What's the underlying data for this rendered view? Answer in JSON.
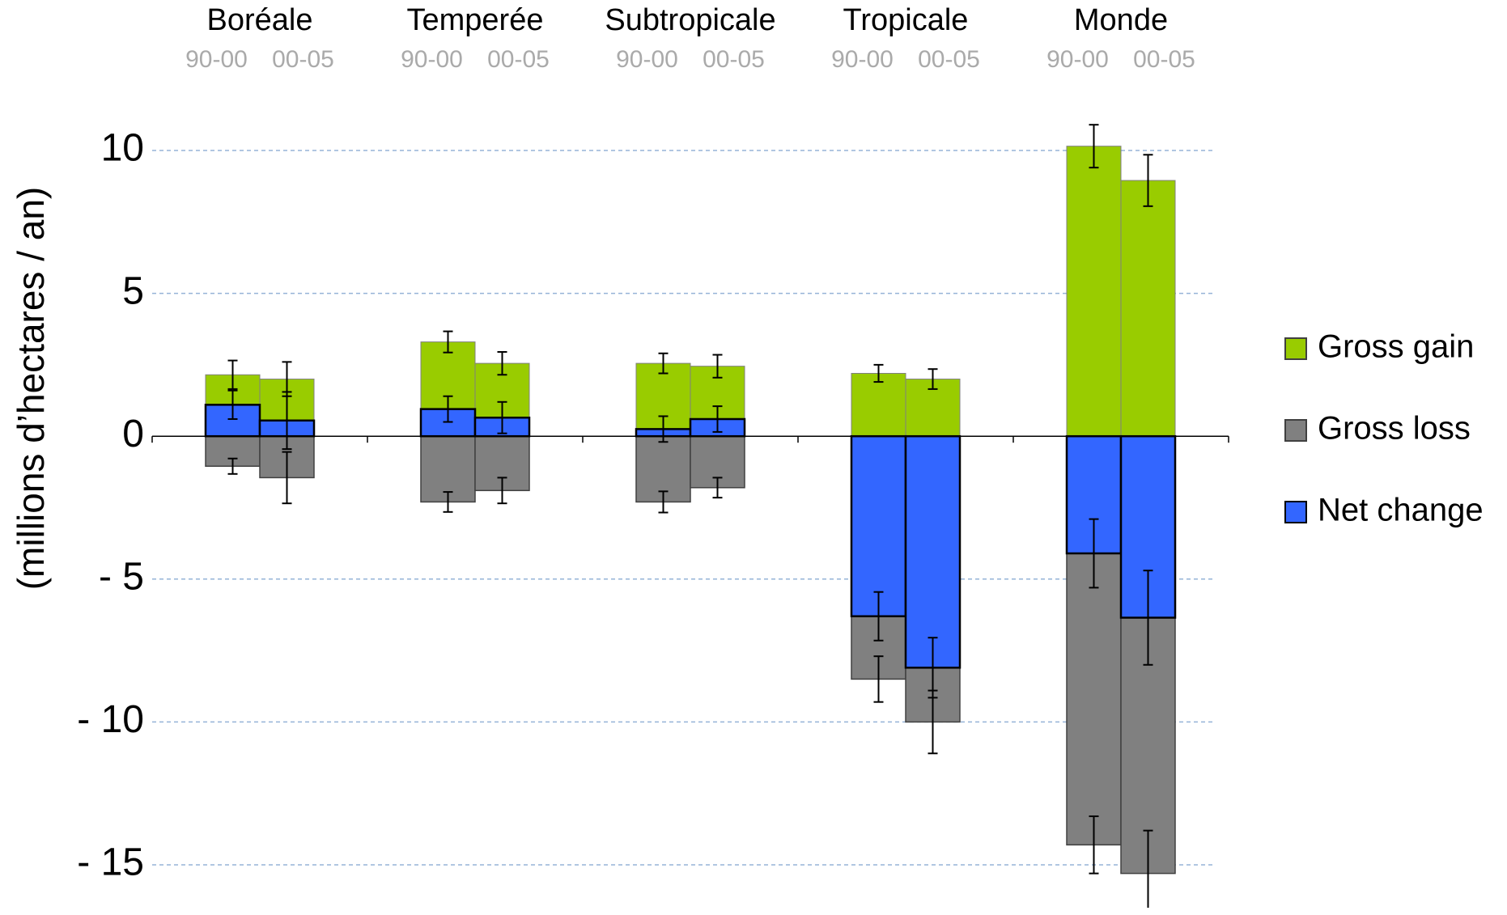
{
  "chart_data": {
    "type": "bar",
    "y_label": "(millions d’hectares / an)",
    "groups": [
      "Boréale",
      "Temperée",
      "Subtropicale",
      "Tropicale",
      "Monde"
    ],
    "periods": [
      "90-00",
      "00-05"
    ],
    "series": [
      {
        "name": "Gross gain",
        "color": "#99cc00",
        "values": [
          2.15,
          2.0,
          3.3,
          2.55,
          2.55,
          2.45,
          2.2,
          2.0,
          10.15,
          8.95
        ],
        "errors": [
          0.5,
          0.6,
          0.37,
          0.4,
          0.35,
          0.4,
          0.3,
          0.35,
          0.75,
          0.9
        ]
      },
      {
        "name": "Gross loss",
        "color": "#808080",
        "values": [
          -1.05,
          -1.45,
          -2.3,
          -1.9,
          -2.3,
          -1.8,
          -8.5,
          -10.0,
          -14.3,
          -15.3
        ],
        "errors": [
          0.27,
          0.9,
          0.35,
          0.45,
          0.37,
          0.35,
          0.8,
          1.1,
          1.0,
          1.5
        ]
      },
      {
        "name": "Net change",
        "color": "#3366ff",
        "values": [
          1.1,
          0.55,
          0.95,
          0.65,
          0.25,
          0.6,
          -6.3,
          -8.1,
          -4.1,
          -6.35
        ],
        "errors": [
          0.5,
          1.0,
          0.45,
          0.55,
          0.45,
          0.45,
          0.85,
          1.05,
          1.2,
          1.65
        ]
      }
    ],
    "ylim": [
      -16.5,
      11.5
    ],
    "yticks": [
      10,
      5,
      0,
      {
        "value": -5,
        "label": "- 5"
      },
      {
        "value": -10,
        "label": "- 10"
      },
      {
        "value": -15,
        "label": "- 15"
      }
    ],
    "grid": true,
    "legend": "right"
  }
}
